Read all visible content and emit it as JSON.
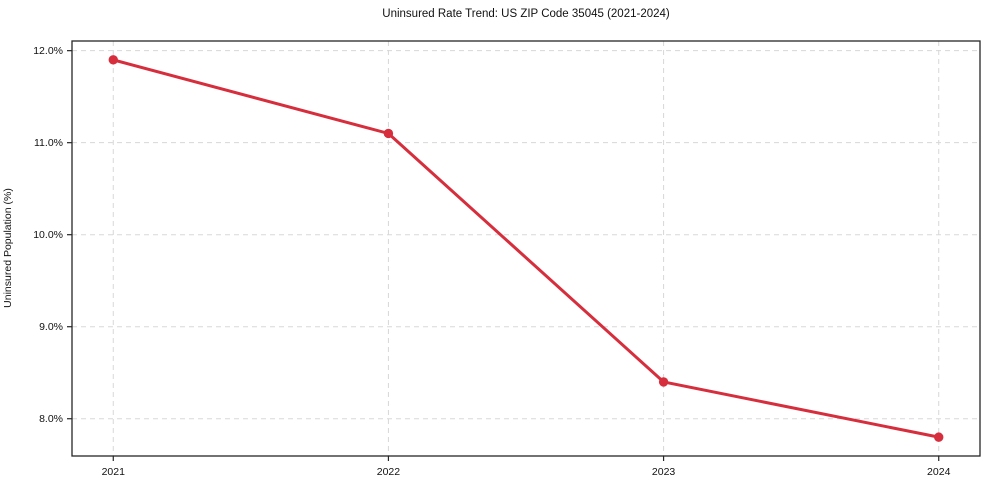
{
  "figure": {
    "title": "Uninsured Rate Trend: US ZIP Code 35045 (2021-2024)",
    "ylabel": "Uninsured Population (%)"
  },
  "chart_data": {
    "type": "line",
    "title": "Uninsured Rate Trend: US ZIP Code 35045 (2021-2024)",
    "xlabel": "",
    "ylabel": "Uninsured Population (%)",
    "x": [
      2021,
      2022,
      2023,
      2024
    ],
    "categories": [
      "2021",
      "2022",
      "2023",
      "2024"
    ],
    "series": [
      {
        "name": "Uninsured rate",
        "values": [
          11.9,
          11.1,
          8.4,
          7.8
        ],
        "color": "#d62e3c",
        "marker": "circle",
        "line_width": 3,
        "marker_radius": 4.7
      }
    ],
    "ytick_values": [
      8,
      9,
      10,
      11,
      12
    ],
    "ytick_labels": [
      "8.0%",
      "9.0%",
      "10.0%",
      "11.0%",
      "12.0%"
    ],
    "xtick_values": [
      2021,
      2022,
      2023,
      2024
    ],
    "xtick_labels": [
      "2021",
      "2022",
      "2023",
      "2024"
    ],
    "xlim": [
      2020.85,
      2024.15
    ],
    "ylim": [
      7.595,
      12.105
    ],
    "grid": "on",
    "grid_color": "#d8d8d8",
    "grid_dash": "5 4",
    "spine_color": "#262626",
    "background_color": "#ffffff",
    "legend": "none"
  }
}
